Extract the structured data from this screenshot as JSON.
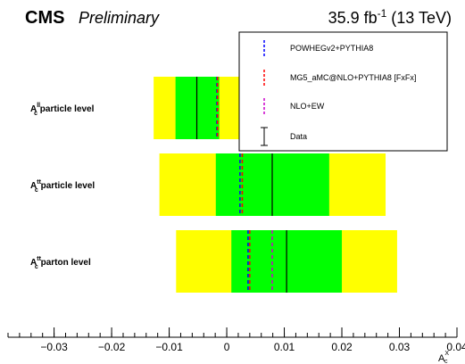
{
  "header": {
    "experiment": "CMS",
    "status": "Preliminary",
    "lumi_value": "35.9 fb",
    "lumi_exponent": "-1",
    "lumi_energy": " (13 TeV)"
  },
  "chart_data": {
    "type": "interval",
    "xlabel": "A",
    "xlabel_sub": "c",
    "xlabel_sup": "X",
    "xlim": [
      -0.038,
      0.04
    ],
    "xticks": [
      {
        "value": -0.03,
        "label": "−0.03"
      },
      {
        "value": -0.02,
        "label": "−0.02"
      },
      {
        "value": -0.01,
        "label": "−0.01"
      },
      {
        "value": 0,
        "label": "0"
      },
      {
        "value": 0.01,
        "label": "0.01"
      },
      {
        "value": 0.02,
        "label": "0.02"
      },
      {
        "value": 0.03,
        "label": "0.03"
      },
      {
        "value": 0.04,
        "label": "0.04"
      }
    ],
    "minor_step": 0.002,
    "colors": {
      "band_1sigma": "#00ff00",
      "band_2sigma": "#ffff00",
      "powheg": "#0000ff",
      "mg5": "#ff0000",
      "nloew": "#cc00cc",
      "data": "#000000"
    },
    "rows": [
      {
        "label_main": "A",
        "label_sub": "c",
        "label_sup": "ll",
        "label_rest": " particle level",
        "data": -0.0052,
        "band1": [
          -0.0089,
          -0.0013
        ],
        "band2": [
          -0.0127,
          0.0025
        ],
        "powheg": -0.0017,
        "mg5": -0.0016,
        "nloew": null
      },
      {
        "label_main": "A",
        "label_sub": "c",
        "label_sup": "tt",
        "label_rest": " particle level",
        "data": 0.0079,
        "band1": [
          -0.0019,
          0.0178
        ],
        "band2": [
          -0.0117,
          0.0276
        ],
        "powheg": 0.0023,
        "mg5": 0.0027,
        "nloew": null
      },
      {
        "label_main": "A",
        "label_sub": "c",
        "label_sup": "tt",
        "label_rest": " parton level",
        "data": 0.0104,
        "band1": [
          0.0008,
          0.02
        ],
        "band2": [
          -0.0088,
          0.0296
        ],
        "powheg": 0.0037,
        "mg5": 0.004,
        "nloew": 0.0079
      }
    ],
    "legend": {
      "position": "top-right",
      "items": [
        {
          "key": "powheg",
          "label": "POWHEGv2+PYTHIA8"
        },
        {
          "key": "mg5",
          "label": "MG5_aMC@NLO+PYTHIA8 [FxFx]"
        },
        {
          "key": "nloew",
          "label": "NLO+EW"
        },
        {
          "key": "data",
          "label": "Data"
        }
      ]
    }
  }
}
